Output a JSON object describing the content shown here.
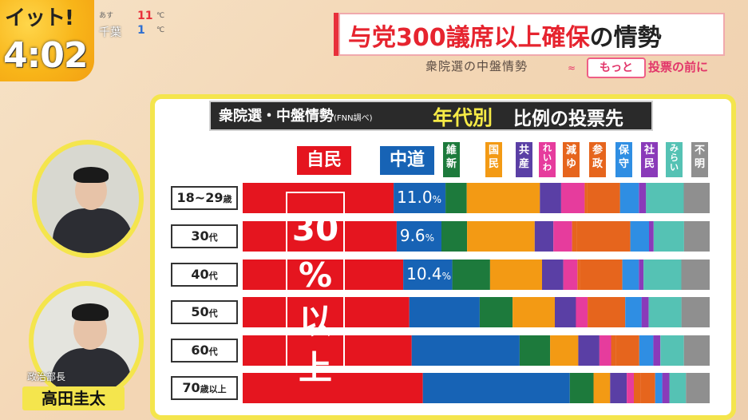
{
  "program": {
    "logo": "イット!",
    "clock": "4:02"
  },
  "weather": {
    "day_label": "あす",
    "place": "千葉",
    "high": "11",
    "low": "1",
    "unit": "℃"
  },
  "headline": {
    "main": "与党300議席以上確保",
    "tail": "の情勢",
    "sub": "衆院選の中盤情勢",
    "tag": "もっと",
    "tag2": "投票の前に"
  },
  "panel": {
    "title": "衆院選・中盤情勢",
    "title_note": "(FNN調べ)",
    "subtitle_highlight": "年代別",
    "subtitle": "比例の投票先"
  },
  "overlay_text": "30%以上",
  "presenter": {
    "role": "政治部長",
    "name": "高田圭太"
  },
  "colors": {
    "自民": "#e5151f",
    "中道": "#1763b5",
    "維新": "#1d7a3c",
    "国民": "#f39a14",
    "共産": "#5a3fa5",
    "れいわ": "#e63c9d",
    "減ゆ": "#e6651d",
    "参政": "#e6651d",
    "保守": "#2f8ee3",
    "社民": "#8a3ab9",
    "みらい": "#55c2b4",
    "不明": "#8f8f8f"
  },
  "chart_data": {
    "type": "bar",
    "orientation": "horizontal-stacked-100",
    "title": "衆院選・中盤情勢(FNN調べ) 年代別 比例の投票先",
    "categories": [
      "18~29歳",
      "30代",
      "40代",
      "50代",
      "60代",
      "70歳以上"
    ],
    "category_labels": [
      {
        "main": "18~29",
        "suffix": "歳"
      },
      {
        "main": "30",
        "suffix": "代"
      },
      {
        "main": "40",
        "suffix": "代"
      },
      {
        "main": "50",
        "suffix": "代"
      },
      {
        "main": "60",
        "suffix": "代"
      },
      {
        "main": "70",
        "suffix": "歳以上"
      }
    ],
    "series": [
      {
        "name": "自民",
        "header": "自民",
        "values": [
          32.0,
          33.0,
          34.0,
          35.5,
          36.0,
          38.0
        ]
      },
      {
        "name": "中道",
        "header": "中道",
        "values": [
          11.0,
          9.6,
          10.4,
          15.0,
          23.0,
          31.0
        ]
      },
      {
        "name": "維新",
        "header": "維新",
        "values": [
          4.5,
          5.5,
          8.0,
          7.0,
          6.5,
          5.0
        ]
      },
      {
        "name": "国民",
        "header": "国民",
        "values": [
          15.5,
          14.5,
          11.0,
          9.0,
          6.0,
          3.5
        ]
      },
      {
        "name": "共産",
        "header": "共産",
        "values": [
          4.5,
          4.0,
          4.5,
          4.5,
          4.5,
          3.5
        ]
      },
      {
        "name": "れいわ",
        "header": "れいわ",
        "values": [
          5.0,
          4.0,
          3.0,
          2.5,
          2.5,
          1.5
        ]
      },
      {
        "name": "減ゆ",
        "header": "減ゆ",
        "values": [
          0.5,
          1.0,
          0.5,
          1.0,
          1.0,
          1.5
        ]
      },
      {
        "name": "参政",
        "header": "参政",
        "values": [
          7.0,
          11.5,
          9.0,
          7.0,
          5.0,
          3.0
        ]
      },
      {
        "name": "保守",
        "header": "保守",
        "values": [
          4.0,
          4.0,
          3.5,
          3.5,
          3.0,
          1.5
        ]
      },
      {
        "name": "社民",
        "header": "社民",
        "values": [
          1.5,
          1.0,
          1.0,
          1.5,
          1.5,
          1.5
        ]
      },
      {
        "name": "みらい",
        "header": "みらい",
        "values": [
          8.0,
          6.5,
          8.0,
          7.0,
          5.0,
          3.5
        ]
      },
      {
        "name": "不明",
        "header": "不明",
        "values": [
          5.5,
          5.5,
          6.0,
          6.0,
          5.5,
          5.0
        ]
      }
    ],
    "value_labels": {
      "series": "中道",
      "values": [
        "11.0",
        "9.6",
        "10.4"
      ],
      "unit": "%"
    },
    "xlim": [
      0,
      100
    ]
  }
}
